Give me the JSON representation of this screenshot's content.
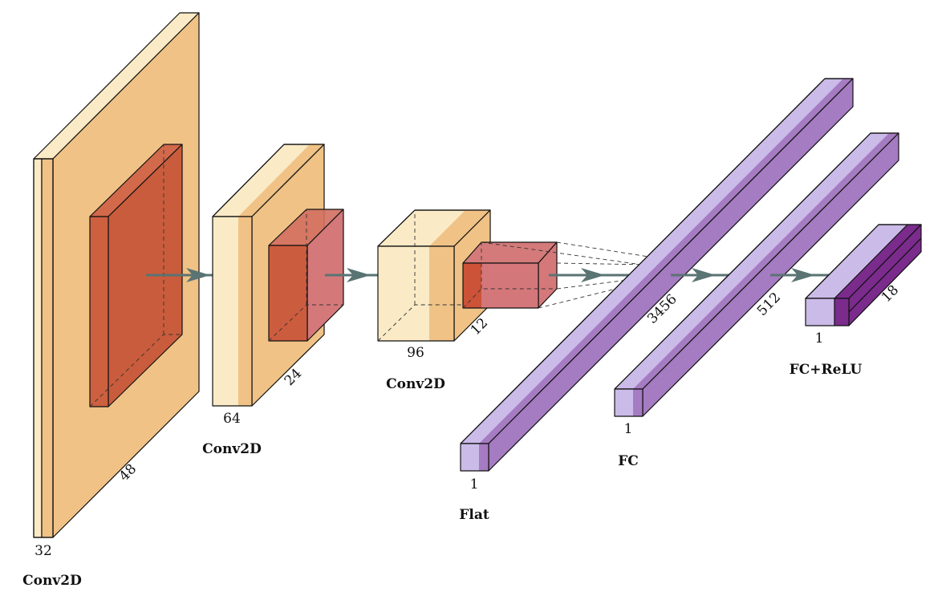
{
  "colors": {
    "conv_face": "#f0c286",
    "conv_front": "#faeac6",
    "pool": "#c95c3c",
    "pool_translucent": "#c9484a",
    "fc_light": "#cbbbe8",
    "fc_mid": "#a57bc2",
    "relu_dark": "#7a2b8c",
    "arrow": "#5a7373"
  },
  "layers": [
    {
      "title": "Conv2D",
      "dim_a": "32",
      "dim_b": "48"
    },
    {
      "title": "Conv2D",
      "dim_a": "64",
      "dim_b": "24"
    },
    {
      "title": "Conv2D",
      "dim_a": "96",
      "dim_b": "12"
    },
    {
      "title": "Flat",
      "dim_a": "1",
      "dim_b": "3456"
    },
    {
      "title": "FC",
      "dim_a": "1",
      "dim_b": "512"
    },
    {
      "title": "FC+ReLU",
      "dim_a": "1",
      "dim_b": "18"
    }
  ]
}
